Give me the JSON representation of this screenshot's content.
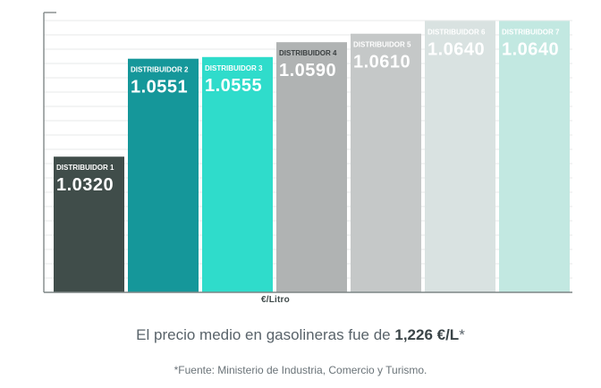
{
  "chart_data": {
    "type": "bar",
    "categories": [
      "DISTRIBUIDOR 1",
      "DISTRIBUIDOR 2",
      "DISTRIBUIDOR 3",
      "DISTRIBUIDOR 4",
      "DISTRIBUIDOR 5",
      "DISTRIBUIDOR 6",
      "DISTRIBUIDOR 7"
    ],
    "values": [
      1.032,
      1.0551,
      1.0555,
      1.059,
      1.061,
      1.064,
      1.064
    ],
    "value_labels": [
      "1.0320",
      "1.0551",
      "1.0555",
      "1.0590",
      "1.0610",
      "1.0640",
      "1.0640"
    ],
    "bar_colors": [
      "#404d4a",
      "#15979a",
      "#2fdccb",
      "#b0b3b3",
      "#c5c8c8",
      "#d9e2e1",
      "#c2e8e1"
    ],
    "category_label_colors": [
      "#ffffff",
      "#ffffff",
      "#ffffff",
      "#3a3f40",
      "#ffffff",
      "#ffffff",
      "#ffffff"
    ],
    "value_label_colors": [
      "#ffffff",
      "#ffffff",
      "#ffffff",
      "#ffffff",
      "#ffffff",
      "#ffffff",
      "#ffffff"
    ],
    "xlabel": "€/Litro",
    "ylabel": "",
    "ylim": [
      1.0,
      1.066
    ],
    "grid": true
  },
  "footer": {
    "summary_prefix": "El precio medio en gasolineras fue de ",
    "summary_value": "1,226 €/L",
    "summary_mark": "*",
    "source": "*Fuente: Ministerio de Industria, Comercio y Turismo."
  }
}
